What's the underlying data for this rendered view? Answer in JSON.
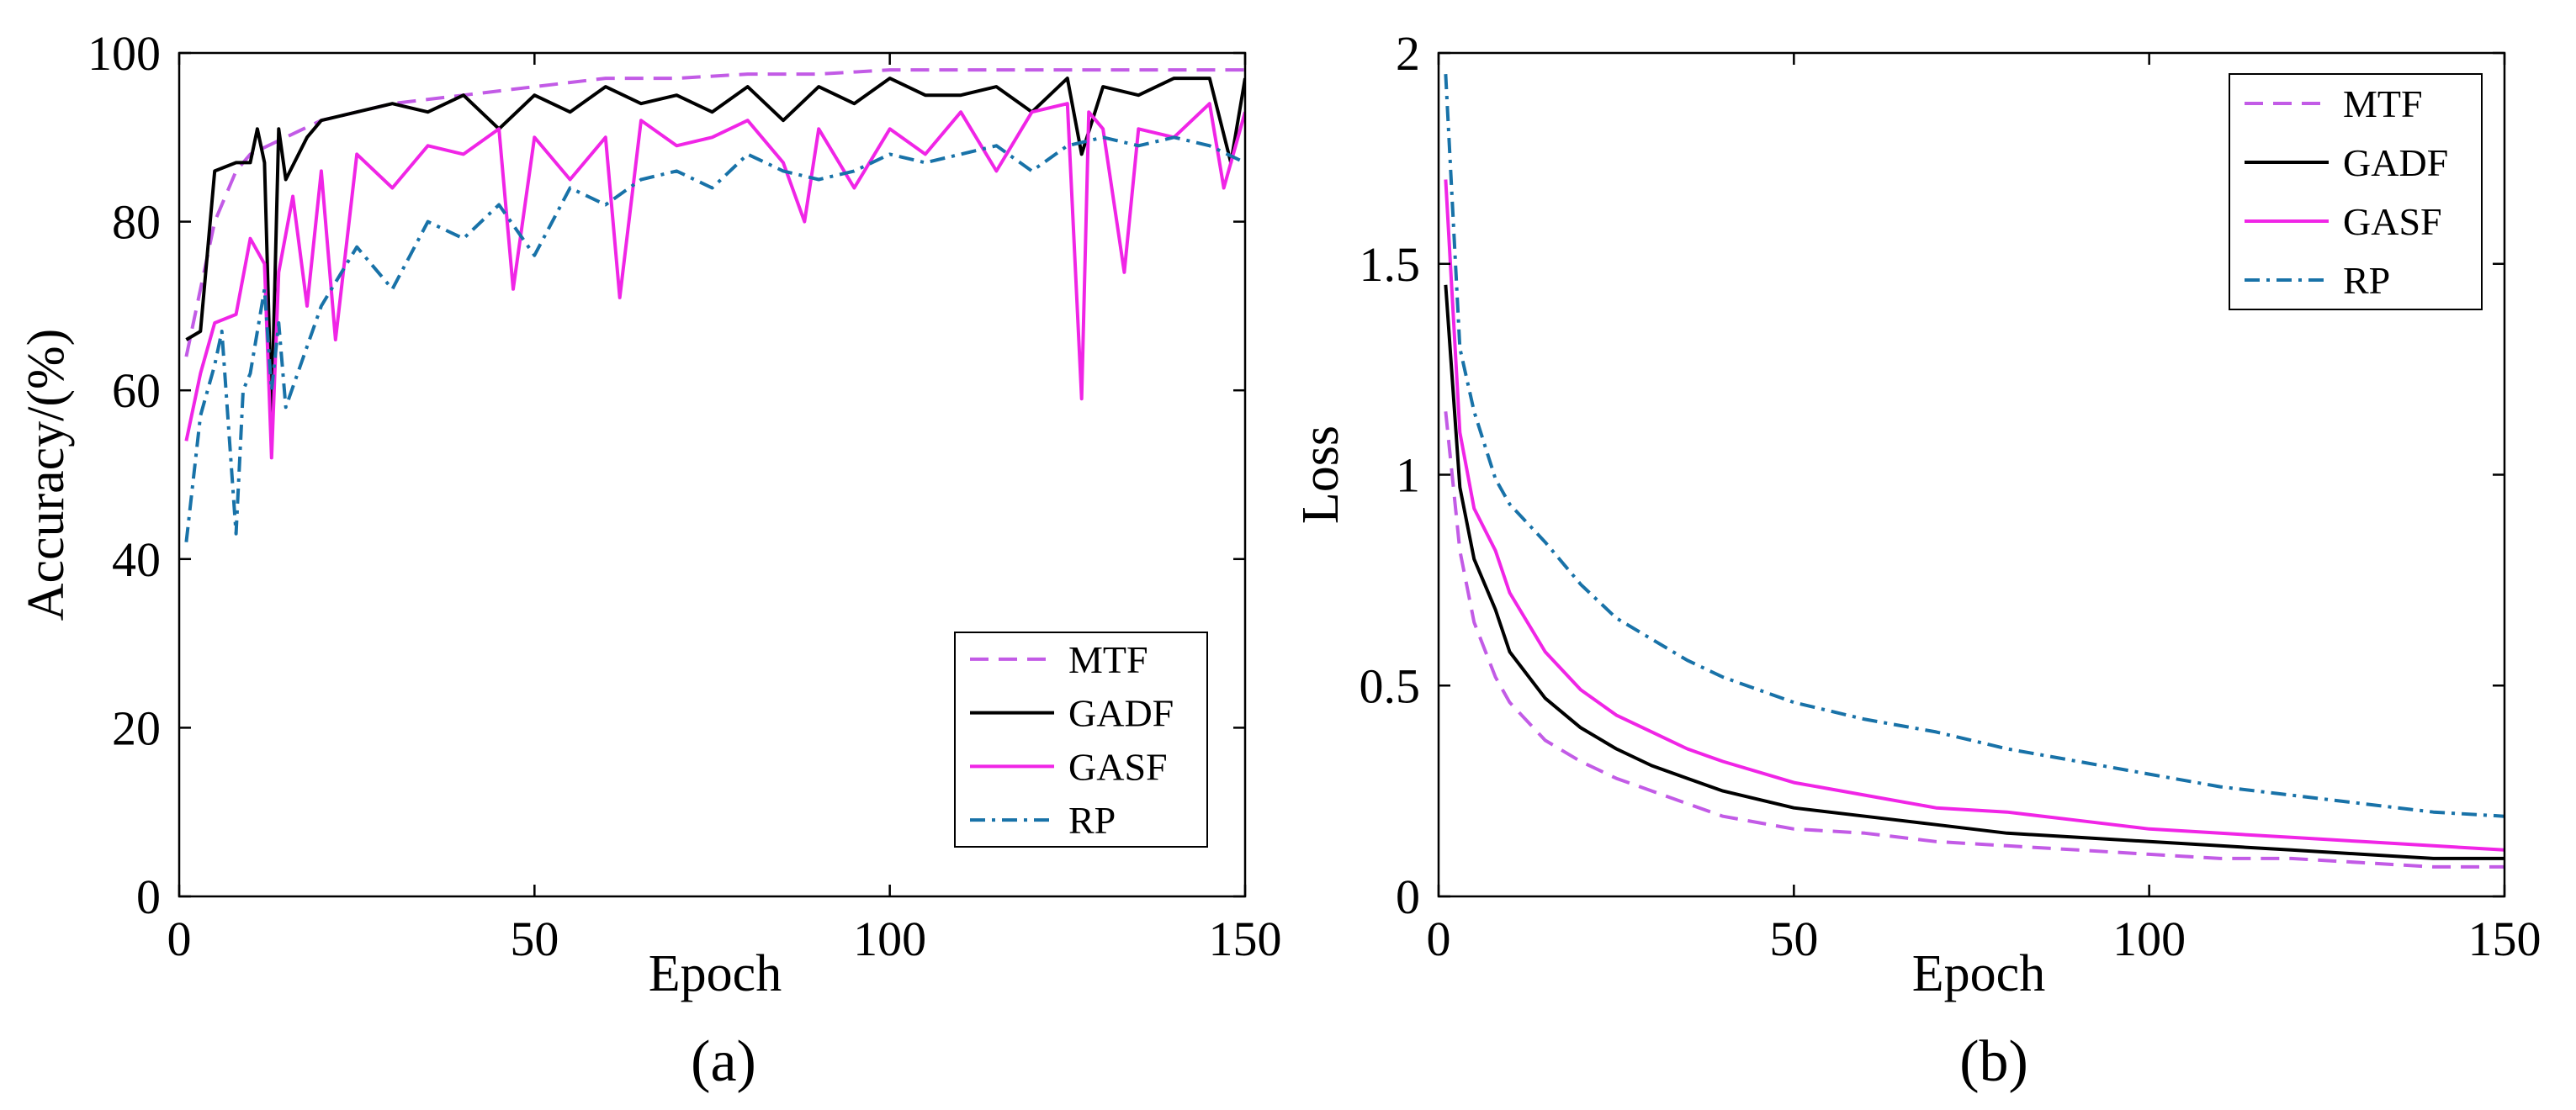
{
  "chart_data": [
    {
      "id": "a",
      "type": "line",
      "panel_label": "(a)",
      "xlabel": "Epoch",
      "ylabel": "Accuracy/(%)",
      "xlim": [
        0,
        150
      ],
      "ylim": [
        0,
        100
      ],
      "xticks": [
        0,
        50,
        100,
        150
      ],
      "yticks": [
        0,
        20,
        40,
        60,
        80,
        100
      ],
      "xtick_labels": [
        "0",
        "50",
        "100",
        "150"
      ],
      "ytick_labels": [
        "0",
        "20",
        "40",
        "60",
        "80",
        "100"
      ],
      "grid": false,
      "legend": "bottom-right",
      "series": [
        {
          "name": "MTF",
          "color": "#c25be6",
          "style": "dashed",
          "x": [
            1,
            3,
            5,
            8,
            10,
            15,
            20,
            25,
            30,
            40,
            50,
            60,
            70,
            80,
            90,
            100,
            110,
            120,
            130,
            140,
            150
          ],
          "values": [
            64,
            72,
            80,
            86,
            88,
            90,
            92,
            93,
            94,
            95,
            96,
            97,
            97,
            97.5,
            97.5,
            98,
            98,
            98,
            98,
            98,
            98
          ]
        },
        {
          "name": "GADF",
          "color": "#000000",
          "style": "solid",
          "x": [
            1,
            3,
            5,
            8,
            10,
            11,
            12,
            13,
            14,
            15,
            18,
            20,
            25,
            30,
            35,
            40,
            45,
            50,
            55,
            60,
            65,
            70,
            75,
            80,
            85,
            90,
            95,
            100,
            105,
            110,
            115,
            120,
            125,
            127,
            130,
            135,
            140,
            145,
            148,
            150
          ],
          "values": [
            66,
            67,
            86,
            87,
            87,
            91,
            87,
            57,
            91,
            85,
            90,
            92,
            93,
            94,
            93,
            95,
            91,
            95,
            93,
            96,
            94,
            95,
            93,
            96,
            92,
            96,
            94,
            97,
            95,
            95,
            96,
            93,
            97,
            88,
            96,
            95,
            97,
            97,
            87,
            97
          ]
        },
        {
          "name": "GASF",
          "color": "#f025e6",
          "style": "solid",
          "x": [
            1,
            3,
            5,
            8,
            10,
            12,
            13,
            14,
            16,
            18,
            20,
            22,
            25,
            30,
            35,
            40,
            45,
            47,
            50,
            55,
            60,
            62,
            65,
            70,
            75,
            80,
            85,
            88,
            90,
            95,
            100,
            105,
            110,
            115,
            120,
            125,
            127,
            128,
            130,
            133,
            135,
            140,
            145,
            147,
            150
          ],
          "values": [
            54,
            62,
            68,
            69,
            78,
            75,
            52,
            74,
            83,
            70,
            86,
            66,
            88,
            84,
            89,
            88,
            91,
            72,
            90,
            85,
            90,
            71,
            92,
            89,
            90,
            92,
            87,
            80,
            91,
            84,
            91,
            88,
            93,
            86,
            93,
            94,
            59,
            93,
            91,
            74,
            91,
            90,
            94,
            84,
            93
          ]
        },
        {
          "name": "RP",
          "color": "#1872a8",
          "style": "dashdot",
          "x": [
            1,
            3,
            5,
            6,
            8,
            9,
            10,
            12,
            13,
            14,
            15,
            20,
            25,
            30,
            35,
            40,
            45,
            50,
            55,
            60,
            65,
            70,
            75,
            80,
            85,
            90,
            95,
            100,
            105,
            110,
            115,
            120,
            125,
            130,
            135,
            140,
            145,
            150
          ],
          "values": [
            42,
            57,
            63,
            67,
            43,
            60,
            62,
            72,
            60,
            68,
            58,
            70,
            77,
            72,
            80,
            78,
            82,
            76,
            84,
            82,
            85,
            86,
            84,
            88,
            86,
            85,
            86,
            88,
            87,
            88,
            89,
            86,
            89,
            90,
            89,
            90,
            89,
            87
          ]
        }
      ]
    },
    {
      "id": "b",
      "type": "line",
      "panel_label": "(b)",
      "xlabel": "Epoch",
      "ylabel": "Loss",
      "xlim": [
        0,
        150
      ],
      "ylim": [
        0,
        2
      ],
      "xticks": [
        0,
        50,
        100,
        150
      ],
      "yticks": [
        0,
        0.5,
        1,
        1.5,
        2
      ],
      "xtick_labels": [
        "0",
        "50",
        "100",
        "150"
      ],
      "ytick_labels": [
        "0",
        "0.5",
        "1",
        "1.5",
        "2"
      ],
      "grid": false,
      "legend": "top-right",
      "series": [
        {
          "name": "MTF",
          "color": "#c25be6",
          "style": "dashed",
          "x": [
            1,
            3,
            5,
            8,
            10,
            15,
            20,
            25,
            30,
            35,
            40,
            50,
            60,
            70,
            80,
            90,
            100,
            110,
            120,
            130,
            140,
            150
          ],
          "values": [
            1.15,
            0.82,
            0.65,
            0.52,
            0.46,
            0.37,
            0.32,
            0.28,
            0.25,
            0.22,
            0.19,
            0.16,
            0.15,
            0.13,
            0.12,
            0.11,
            0.1,
            0.09,
            0.09,
            0.08,
            0.07,
            0.07
          ]
        },
        {
          "name": "GADF",
          "color": "#000000",
          "style": "solid",
          "x": [
            1,
            3,
            5,
            8,
            10,
            15,
            20,
            25,
            30,
            35,
            40,
            50,
            60,
            70,
            80,
            90,
            100,
            110,
            120,
            130,
            140,
            150
          ],
          "values": [
            1.45,
            0.97,
            0.8,
            0.68,
            0.58,
            0.47,
            0.4,
            0.35,
            0.31,
            0.28,
            0.25,
            0.21,
            0.19,
            0.17,
            0.15,
            0.14,
            0.13,
            0.12,
            0.11,
            0.1,
            0.09,
            0.09
          ]
        },
        {
          "name": "GASF",
          "color": "#f025e6",
          "style": "solid",
          "x": [
            1,
            3,
            5,
            8,
            10,
            15,
            20,
            25,
            30,
            35,
            40,
            50,
            60,
            70,
            80,
            90,
            100,
            110,
            120,
            130,
            140,
            150
          ],
          "values": [
            1.7,
            1.1,
            0.92,
            0.82,
            0.72,
            0.58,
            0.49,
            0.43,
            0.39,
            0.35,
            0.32,
            0.27,
            0.24,
            0.21,
            0.2,
            0.18,
            0.16,
            0.15,
            0.14,
            0.13,
            0.12,
            0.11
          ]
        },
        {
          "name": "RP",
          "color": "#1872a8",
          "style": "dashdot",
          "x": [
            1,
            3,
            5,
            8,
            10,
            15,
            20,
            25,
            30,
            35,
            40,
            50,
            60,
            70,
            80,
            90,
            100,
            110,
            120,
            130,
            140,
            150
          ],
          "values": [
            1.95,
            1.3,
            1.15,
            0.99,
            0.93,
            0.84,
            0.74,
            0.66,
            0.61,
            0.56,
            0.52,
            0.46,
            0.42,
            0.39,
            0.35,
            0.32,
            0.29,
            0.26,
            0.24,
            0.22,
            0.2,
            0.19
          ]
        }
      ]
    }
  ]
}
